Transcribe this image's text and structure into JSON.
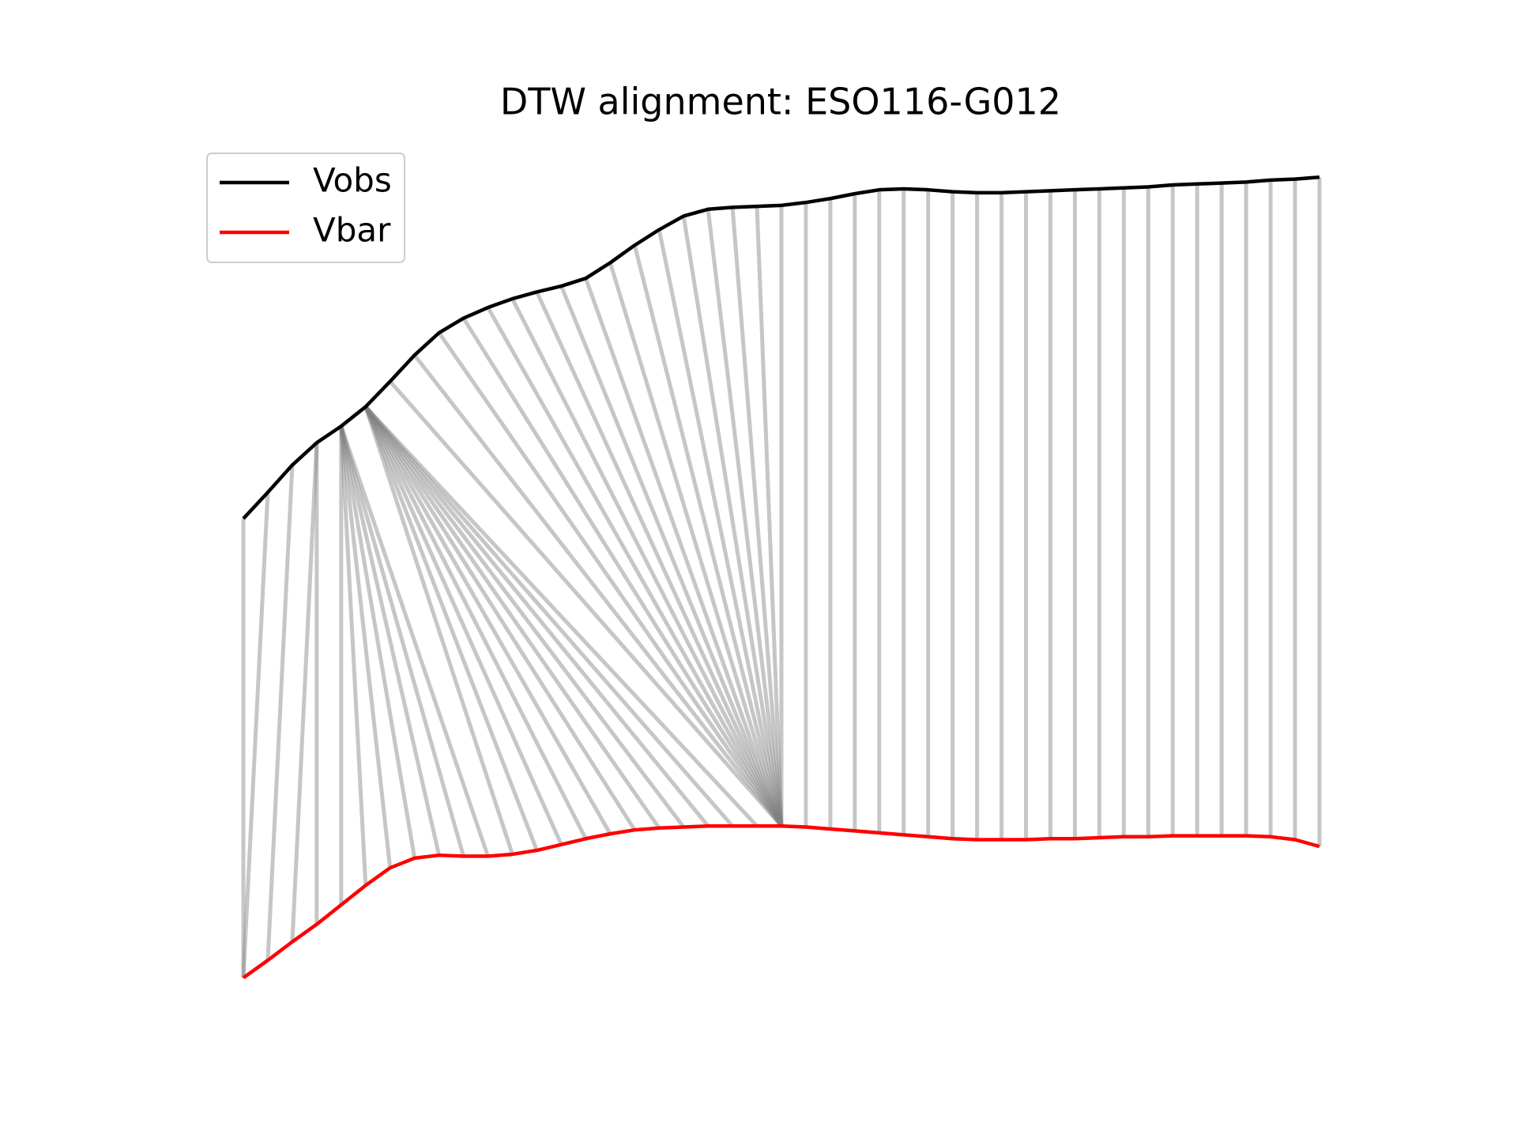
{
  "chart_data": {
    "type": "dtw",
    "title": "DTW alignment: ESO116-G012",
    "xlim": [
      0,
      44
    ],
    "ylim": [
      0,
      100
    ],
    "legend": "upper left",
    "link_color": "#808080",
    "series": [
      {
        "name": "Vobs",
        "color": "#000000",
        "values": [
          52.7,
          55.4,
          58.2,
          60.5,
          62.2,
          64.2,
          66.8,
          69.5,
          71.8,
          73.3,
          74.4,
          75.3,
          76.0,
          76.6,
          77.4,
          79.0,
          80.8,
          82.4,
          83.8,
          84.5,
          84.7,
          84.8,
          84.9,
          85.2,
          85.6,
          86.1,
          86.5,
          86.6,
          86.5,
          86.3,
          86.2,
          86.2,
          86.3,
          86.4,
          86.5,
          86.6,
          86.7,
          86.8,
          87.0,
          87.1,
          87.2,
          87.3,
          87.5,
          87.6,
          87.8
        ]
      },
      {
        "name": "Vbar",
        "color": "#ff0000",
        "values": [
          5.5,
          7.3,
          9.2,
          11.0,
          13.0,
          15.0,
          16.8,
          17.8,
          18.1,
          18.0,
          18.0,
          18.2,
          18.6,
          19.2,
          19.8,
          20.3,
          20.7,
          20.9,
          21.0,
          21.1,
          21.1,
          21.1,
          21.1,
          21.0,
          20.8,
          20.6,
          20.4,
          20.2,
          20.0,
          19.8,
          19.7,
          19.7,
          19.7,
          19.8,
          19.8,
          19.9,
          20.0,
          20.0,
          20.1,
          20.1,
          20.1,
          20.1,
          20.0,
          19.7,
          19.0
        ]
      }
    ],
    "alignment": [
      [
        0,
        0
      ],
      [
        1,
        0
      ],
      [
        2,
        1
      ],
      [
        3,
        2
      ],
      [
        3,
        3
      ],
      [
        4,
        4
      ],
      [
        4,
        5
      ],
      [
        4,
        6
      ],
      [
        4,
        7
      ],
      [
        4,
        8
      ],
      [
        4,
        9
      ],
      [
        4,
        10
      ],
      [
        5,
        11
      ],
      [
        5,
        12
      ],
      [
        5,
        13
      ],
      [
        5,
        14
      ],
      [
        5,
        15
      ],
      [
        5,
        16
      ],
      [
        5,
        17
      ],
      [
        5,
        18
      ],
      [
        5,
        19
      ],
      [
        5,
        20
      ],
      [
        5,
        21
      ],
      [
        6,
        22
      ],
      [
        7,
        22
      ],
      [
        8,
        22
      ],
      [
        9,
        22
      ],
      [
        10,
        22
      ],
      [
        11,
        22
      ],
      [
        12,
        22
      ],
      [
        13,
        22
      ],
      [
        14,
        22
      ],
      [
        15,
        22
      ],
      [
        16,
        22
      ],
      [
        17,
        22
      ],
      [
        18,
        22
      ],
      [
        19,
        22
      ],
      [
        20,
        22
      ],
      [
        21,
        22
      ],
      [
        22,
        22
      ],
      [
        23,
        23
      ],
      [
        24,
        24
      ],
      [
        25,
        25
      ],
      [
        26,
        26
      ],
      [
        27,
        27
      ],
      [
        28,
        28
      ],
      [
        29,
        29
      ],
      [
        30,
        30
      ],
      [
        31,
        31
      ],
      [
        32,
        32
      ],
      [
        33,
        33
      ],
      [
        34,
        34
      ],
      [
        35,
        35
      ],
      [
        36,
        36
      ],
      [
        37,
        37
      ],
      [
        38,
        38
      ],
      [
        39,
        39
      ],
      [
        40,
        40
      ],
      [
        41,
        41
      ],
      [
        42,
        42
      ],
      [
        43,
        43
      ],
      [
        44,
        44
      ]
    ]
  }
}
